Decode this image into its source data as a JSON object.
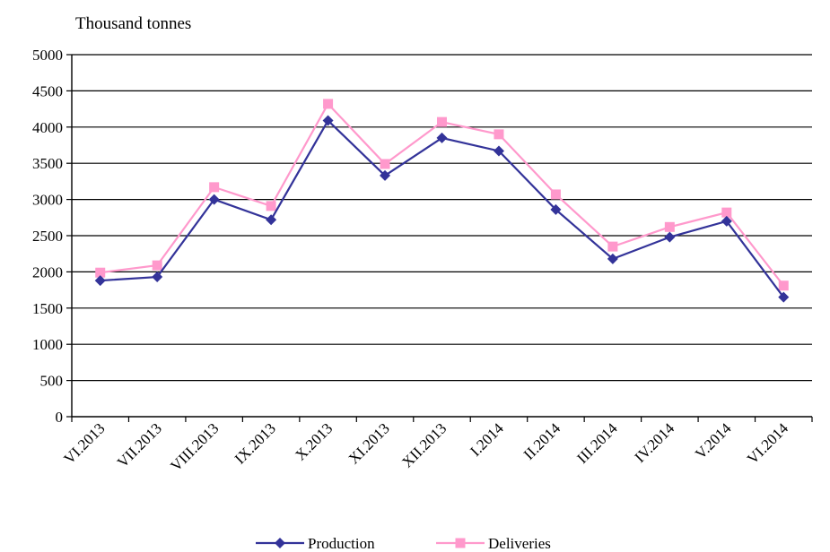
{
  "chart_data": {
    "type": "line",
    "unit_label": "Thousand tonnes",
    "categories": [
      "VI.2013",
      "VII.2013",
      "VIII.2013",
      "IX.2013",
      "X.2013",
      "XI.2013",
      "XII.2013",
      "I.2014",
      "II.2014",
      "III.2014",
      "IV.2014",
      "V.2014",
      "VI.2014"
    ],
    "yticks": [
      "0",
      "500",
      "1000",
      "1500",
      "2000",
      "2500",
      "3000",
      "3500",
      "4000",
      "4500",
      "5000"
    ],
    "ylim": [
      0,
      5000
    ],
    "grid": true,
    "legend_position": "bottom",
    "series": [
      {
        "name": "Production",
        "color": "#333399",
        "marker": "diamond",
        "values": [
          1880,
          1930,
          3000,
          2720,
          4090,
          3330,
          3850,
          3670,
          2860,
          2180,
          2480,
          2700,
          1650
        ]
      },
      {
        "name": "Deliveries",
        "color": "#ff99cc",
        "marker": "square",
        "values": [
          1990,
          2090,
          3170,
          2910,
          4320,
          3490,
          4070,
          3900,
          3070,
          2350,
          2620,
          2820,
          1810
        ]
      }
    ]
  }
}
